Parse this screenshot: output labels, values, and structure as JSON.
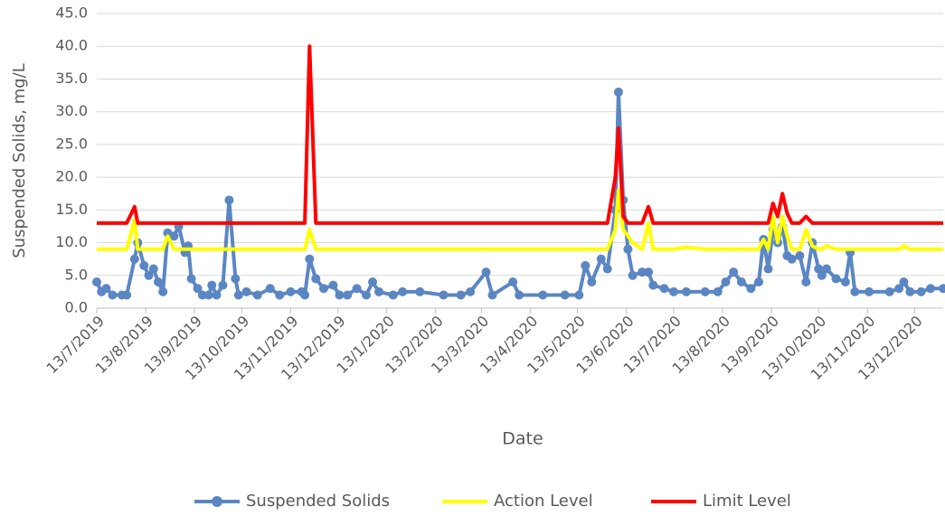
{
  "chart_data": {
    "type": "line",
    "xlabel": "Date",
    "ylabel": "Suspended Solids, mg/L",
    "x": [
      "2019-07-13",
      "2019-07-16",
      "2019-07-19",
      "2019-07-23",
      "2019-07-29",
      "2019-08-01",
      "2019-08-06",
      "2019-08-08",
      "2019-08-12",
      "2019-08-15",
      "2019-08-18",
      "2019-08-21",
      "2019-08-24",
      "2019-08-27",
      "2019-08-31",
      "2019-09-03",
      "2019-09-07",
      "2019-09-09",
      "2019-09-11",
      "2019-09-15",
      "2019-09-18",
      "2019-09-22",
      "2019-09-24",
      "2019-09-27",
      "2019-10-01",
      "2019-10-05",
      "2019-10-09",
      "2019-10-11",
      "2019-10-16",
      "2019-10-23",
      "2019-10-31",
      "2019-11-06",
      "2019-11-13",
      "2019-11-20",
      "2019-11-22",
      "2019-11-25",
      "2019-11-29",
      "2019-12-04",
      "2019-12-10",
      "2019-12-14",
      "2019-12-19",
      "2019-12-25",
      "2019-12-31",
      "2020-01-04",
      "2020-01-08",
      "2020-01-17",
      "2020-01-23",
      "2020-02-03",
      "2020-02-18",
      "2020-02-29",
      "2020-03-06",
      "2020-03-16",
      "2020-03-20",
      "2020-04-02",
      "2020-04-06",
      "2020-04-21",
      "2020-05-05",
      "2020-05-14",
      "2020-05-18",
      "2020-05-22",
      "2020-05-28",
      "2020-06-01",
      "2020-06-06",
      "2020-06-08",
      "2020-06-11",
      "2020-06-14",
      "2020-06-17",
      "2020-06-23",
      "2020-06-27",
      "2020-06-30",
      "2020-07-07",
      "2020-07-13",
      "2020-07-21",
      "2020-08-02",
      "2020-08-10",
      "2020-08-15",
      "2020-08-20",
      "2020-08-25",
      "2020-08-31",
      "2020-09-05",
      "2020-09-08",
      "2020-09-11",
      "2020-09-14",
      "2020-09-17",
      "2020-09-20",
      "2020-09-23",
      "2020-09-26",
      "2020-10-01",
      "2020-10-05",
      "2020-10-09",
      "2020-10-13",
      "2020-10-15",
      "2020-10-18",
      "2020-10-24",
      "2020-10-30",
      "2020-11-02",
      "2020-11-05",
      "2020-11-14",
      "2020-11-27",
      "2020-12-03",
      "2020-12-06",
      "2020-12-10",
      "2020-12-17",
      "2020-12-23",
      "2020-12-31"
    ],
    "series": [
      {
        "name": "Suspended Solids",
        "color": "#5b86c4",
        "markers": true,
        "values": [
          4,
          2.5,
          3,
          2,
          2,
          2,
          7.5,
          10,
          6.5,
          5,
          6,
          4,
          2.5,
          11.5,
          11,
          12.5,
          8.5,
          9.5,
          4.5,
          3,
          2,
          2,
          3.5,
          2,
          3.5,
          16.5,
          4.5,
          2,
          2.5,
          2,
          3,
          2,
          2.5,
          2.5,
          2,
          7.5,
          4.5,
          3,
          3.5,
          2,
          2,
          3,
          2,
          4,
          2.5,
          2,
          2.5,
          2.5,
          2,
          2,
          2.5,
          5.5,
          2,
          4,
          2,
          2,
          2,
          2,
          6.5,
          4,
          7.5,
          6,
          15,
          33,
          16.5,
          9,
          5,
          5.5,
          5.5,
          3.5,
          3,
          2.5,
          2.5,
          2.5,
          2.5,
          4,
          5.5,
          4,
          3,
          4,
          10.5,
          6,
          12,
          10,
          12.5,
          8,
          7.5,
          8,
          4,
          10,
          6,
          5,
          6,
          4.5,
          4,
          8.5,
          2.5,
          2.5,
          2.5,
          3,
          4,
          2.5,
          2.5,
          3,
          3
        ]
      },
      {
        "name": "Action Level",
        "color": "#ffff00",
        "markers": false,
        "values": [
          9,
          9,
          9,
          9,
          9,
          9,
          13.5,
          9,
          9,
          9,
          9,
          9,
          9,
          11,
          9,
          9,
          9,
          9,
          9,
          9,
          9,
          9,
          9,
          9,
          9,
          9,
          9,
          9,
          9,
          9,
          9,
          9,
          9,
          9,
          9,
          12,
          9,
          9,
          9,
          9,
          9,
          9,
          9,
          9,
          9,
          9,
          9,
          9,
          9,
          9,
          9,
          9,
          9,
          9,
          9,
          9,
          9,
          9,
          9,
          9,
          9,
          9,
          12,
          18,
          12,
          11,
          10,
          9,
          13,
          9,
          9,
          9,
          9.3,
          9,
          9,
          9,
          9,
          9,
          9,
          9,
          10.5,
          9,
          14,
          10,
          14,
          11,
          9,
          9,
          12,
          9.5,
          9,
          9,
          9.5,
          9,
          9,
          9,
          9,
          9,
          9,
          9,
          9.5,
          9,
          9,
          9,
          9
        ]
      },
      {
        "name": "Limit Level",
        "color": "#ff0000",
        "markers": false,
        "values": [
          13,
          13,
          13,
          13,
          13,
          13,
          15.5,
          13,
          13,
          13,
          13,
          13,
          13,
          13,
          13,
          13,
          13,
          13,
          13,
          13,
          13,
          13,
          13,
          13,
          13,
          13,
          13,
          13,
          13,
          13,
          13,
          13,
          13,
          13,
          13,
          40,
          13,
          13,
          13,
          13,
          13,
          13,
          13,
          13,
          13,
          13,
          13,
          13,
          13,
          13,
          13,
          13,
          13,
          13,
          13,
          13,
          13,
          13,
          13,
          13,
          13,
          13,
          20,
          27.5,
          14,
          13,
          13,
          13,
          15.5,
          13,
          13,
          13,
          13,
          13,
          13,
          13,
          13,
          13,
          13,
          13,
          13,
          13,
          16,
          14,
          17.5,
          14.5,
          13,
          13,
          14,
          13,
          13,
          13,
          13,
          13,
          13,
          13,
          13,
          13,
          13,
          13,
          13,
          13,
          13,
          13,
          13
        ]
      }
    ],
    "xlim": [
      "2019-07-13",
      "2020-12-31"
    ],
    "xticks": [
      {
        "value": "2019-07-13",
        "label": "13/7/2019"
      },
      {
        "value": "2019-08-13",
        "label": "13/8/2019"
      },
      {
        "value": "2019-09-13",
        "label": "13/9/2019"
      },
      {
        "value": "2019-10-13",
        "label": "13/10/2019"
      },
      {
        "value": "2019-11-13",
        "label": "13/11/2019"
      },
      {
        "value": "2019-12-13",
        "label": "13/12/2019"
      },
      {
        "value": "2020-01-13",
        "label": "13/1/2020"
      },
      {
        "value": "2020-02-13",
        "label": "13/2/2020"
      },
      {
        "value": "2020-03-13",
        "label": "13/3/2020"
      },
      {
        "value": "2020-04-13",
        "label": "13/4/2020"
      },
      {
        "value": "2020-05-13",
        "label": "13/5/2020"
      },
      {
        "value": "2020-06-13",
        "label": "13/6/2020"
      },
      {
        "value": "2020-07-13",
        "label": "13/7/2020"
      },
      {
        "value": "2020-08-13",
        "label": "13/8/2020"
      },
      {
        "value": "2020-09-13",
        "label": "13/9/2020"
      },
      {
        "value": "2020-10-13",
        "label": "13/10/2020"
      },
      {
        "value": "2020-11-13",
        "label": "13/11/2020"
      },
      {
        "value": "2020-12-13",
        "label": "13/12/2020"
      }
    ],
    "ylim": [
      0,
      45
    ],
    "yticks": [
      {
        "value": 0,
        "label": "0.0"
      },
      {
        "value": 5,
        "label": "5.0"
      },
      {
        "value": 10,
        "label": "10.0"
      },
      {
        "value": 15,
        "label": "15.0"
      },
      {
        "value": 20,
        "label": "20.0"
      },
      {
        "value": 25,
        "label": "25.0"
      },
      {
        "value": 30,
        "label": "30.0"
      },
      {
        "value": 35,
        "label": "35.0"
      },
      {
        "value": 40,
        "label": "40.0"
      },
      {
        "value": 45,
        "label": "45.0"
      }
    ],
    "grid": true,
    "legend": "bottom"
  }
}
